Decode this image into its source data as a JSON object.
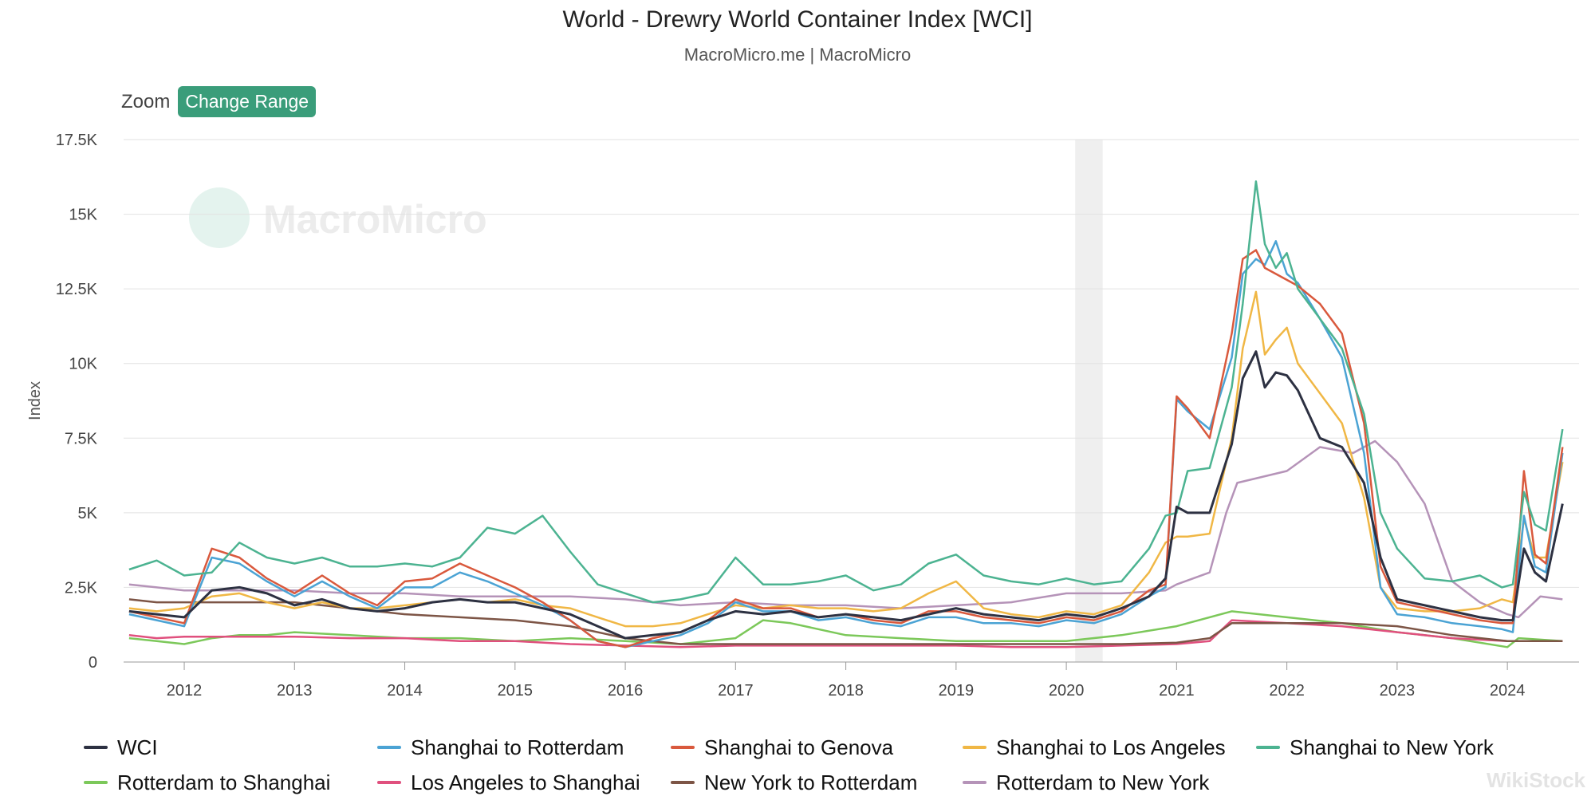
{
  "header": {
    "title": "World - Drewry World Container Index [WCI]",
    "subtitle": "MacroMicro.me | MacroMicro"
  },
  "toolbar": {
    "zoom_label": "Zoom",
    "change_range_label": "Change Range"
  },
  "watermark": {
    "text": "MacroMicro",
    "corner_text": "WikiStock"
  },
  "chart_data": {
    "type": "line",
    "ylabel": "Index",
    "xlabel": "",
    "ylim": [
      0,
      17500
    ],
    "yticks": [
      0,
      2500,
      5000,
      7500,
      10000,
      12500,
      15000,
      17500
    ],
    "ytick_labels": [
      "0",
      "2.5K",
      "5K",
      "7.5K",
      "10K",
      "12.5K",
      "15K",
      "17.5K"
    ],
    "xlim": [
      2011.45,
      2024.65
    ],
    "xticks": [
      2012,
      2013,
      2014,
      2015,
      2016,
      2017,
      2018,
      2019,
      2020,
      2021,
      2022,
      2023,
      2024
    ],
    "xtick_labels": [
      "2012",
      "2013",
      "2014",
      "2015",
      "2016",
      "2017",
      "2018",
      "2019",
      "2020",
      "2021",
      "2022",
      "2023",
      "2024"
    ],
    "grid": true,
    "legend": "bottom",
    "recession_band": [
      2020.08,
      2020.33
    ],
    "series": [
      {
        "name": "WCI",
        "color": "#2d3142",
        "x": [
          2011.5,
          2011.75,
          2012.0,
          2012.25,
          2012.5,
          2012.75,
          2013.0,
          2013.25,
          2013.5,
          2013.75,
          2014.0,
          2014.25,
          2014.5,
          2014.75,
          2015.0,
          2015.25,
          2015.5,
          2015.75,
          2016.0,
          2016.25,
          2016.5,
          2016.75,
          2017.0,
          2017.25,
          2017.5,
          2017.75,
          2018.0,
          2018.25,
          2018.5,
          2018.75,
          2019.0,
          2019.25,
          2019.5,
          2019.75,
          2020.0,
          2020.25,
          2020.5,
          2020.75,
          2020.9,
          2021.0,
          2021.1,
          2021.3,
          2021.5,
          2021.6,
          2021.72,
          2021.8,
          2021.9,
          2022.0,
          2022.1,
          2022.3,
          2022.5,
          2022.7,
          2022.85,
          2023.0,
          2023.25,
          2023.5,
          2023.75,
          2023.95,
          2024.05,
          2024.15,
          2024.25,
          2024.35,
          2024.5
        ],
        "y": [
          1700,
          1600,
          1500,
          2400,
          2500,
          2300,
          1900,
          2100,
          1800,
          1700,
          1800,
          2000,
          2100,
          2000,
          2000,
          1800,
          1600,
          1200,
          800,
          900,
          1000,
          1400,
          1700,
          1600,
          1700,
          1500,
          1600,
          1500,
          1400,
          1600,
          1800,
          1600,
          1500,
          1400,
          1600,
          1500,
          1800,
          2200,
          2800,
          5200,
          5000,
          5000,
          7300,
          9500,
          10400,
          9200,
          9700,
          9600,
          9100,
          7500,
          7200,
          6000,
          3500,
          2100,
          1900,
          1700,
          1500,
          1400,
          1400,
          3800,
          3000,
          2700,
          5300
        ]
      },
      {
        "name": "Shanghai to Rotterdam",
        "color": "#4ba3d4",
        "x": [
          2011.5,
          2011.75,
          2012.0,
          2012.25,
          2012.5,
          2012.75,
          2013.0,
          2013.25,
          2013.5,
          2013.75,
          2014.0,
          2014.25,
          2014.5,
          2014.75,
          2015.0,
          2015.25,
          2015.5,
          2015.75,
          2016.0,
          2016.25,
          2016.5,
          2016.75,
          2017.0,
          2017.25,
          2017.5,
          2017.75,
          2018.0,
          2018.25,
          2018.5,
          2018.75,
          2019.0,
          2019.25,
          2019.5,
          2019.75,
          2020.0,
          2020.25,
          2020.5,
          2020.75,
          2020.9,
          2021.0,
          2021.1,
          2021.3,
          2021.5,
          2021.6,
          2021.72,
          2021.8,
          2021.9,
          2022.0,
          2022.1,
          2022.3,
          2022.5,
          2022.7,
          2022.85,
          2023.0,
          2023.25,
          2023.5,
          2023.75,
          2023.95,
          2024.05,
          2024.15,
          2024.25,
          2024.35,
          2024.5
        ],
        "y": [
          1600,
          1400,
          1200,
          3500,
          3300,
          2700,
          2200,
          2700,
          2200,
          1800,
          2500,
          2500,
          3000,
          2700,
          2300,
          1900,
          1400,
          700,
          500,
          700,
          900,
          1300,
          2000,
          1700,
          1700,
          1400,
          1500,
          1300,
          1200,
          1500,
          1500,
          1300,
          1300,
          1200,
          1400,
          1300,
          1600,
          2200,
          2500,
          8800,
          8400,
          7800,
          10200,
          13000,
          13500,
          13300,
          14100,
          13000,
          12700,
          11500,
          10200,
          7000,
          2500,
          1600,
          1500,
          1300,
          1200,
          1100,
          1000,
          4900,
          3200,
          3000,
          7000
        ]
      },
      {
        "name": "Shanghai to Genova",
        "color": "#d9593d",
        "x": [
          2011.5,
          2011.75,
          2012.0,
          2012.25,
          2012.5,
          2012.75,
          2013.0,
          2013.25,
          2013.5,
          2013.75,
          2014.0,
          2014.25,
          2014.5,
          2014.75,
          2015.0,
          2015.25,
          2015.5,
          2015.75,
          2016.0,
          2016.25,
          2016.5,
          2016.75,
          2017.0,
          2017.25,
          2017.5,
          2017.75,
          2018.0,
          2018.25,
          2018.5,
          2018.75,
          2019.0,
          2019.25,
          2019.5,
          2019.75,
          2020.0,
          2020.25,
          2020.5,
          2020.75,
          2020.9,
          2021.0,
          2021.1,
          2021.3,
          2021.5,
          2021.6,
          2021.72,
          2021.8,
          2021.9,
          2022.0,
          2022.1,
          2022.3,
          2022.5,
          2022.7,
          2022.85,
          2023.0,
          2023.25,
          2023.5,
          2023.75,
          2023.95,
          2024.05,
          2024.15,
          2024.25,
          2024.35,
          2024.5
        ],
        "y": [
          1700,
          1500,
          1300,
          3800,
          3500,
          2800,
          2300,
          2900,
          2300,
          1900,
          2700,
          2800,
          3300,
          2900,
          2500,
          2000,
          1400,
          700,
          500,
          800,
          1000,
          1400,
          2100,
          1800,
          1800,
          1500,
          1600,
          1400,
          1300,
          1700,
          1700,
          1500,
          1400,
          1300,
          1500,
          1400,
          1700,
          2400,
          2600,
          8900,
          8500,
          7500,
          11000,
          13500,
          13800,
          13200,
          13000,
          12800,
          12600,
          12000,
          11000,
          8000,
          3200,
          2000,
          1800,
          1600,
          1400,
          1300,
          1300,
          6400,
          3600,
          3300,
          7200
        ]
      },
      {
        "name": "Shanghai to Los Angeles",
        "color": "#f0b745",
        "x": [
          2011.5,
          2011.75,
          2012.0,
          2012.25,
          2012.5,
          2012.75,
          2013.0,
          2013.25,
          2013.5,
          2013.75,
          2014.0,
          2014.25,
          2014.5,
          2014.75,
          2015.0,
          2015.25,
          2015.5,
          2015.75,
          2016.0,
          2016.25,
          2016.5,
          2016.75,
          2017.0,
          2017.25,
          2017.5,
          2017.75,
          2018.0,
          2018.25,
          2018.5,
          2018.75,
          2019.0,
          2019.25,
          2019.5,
          2019.75,
          2020.0,
          2020.25,
          2020.5,
          2020.75,
          2020.9,
          2021.0,
          2021.1,
          2021.3,
          2021.5,
          2021.6,
          2021.72,
          2021.8,
          2021.9,
          2022.0,
          2022.1,
          2022.3,
          2022.5,
          2022.7,
          2022.85,
          2023.0,
          2023.25,
          2023.5,
          2023.75,
          2023.95,
          2024.05,
          2024.15,
          2024.25,
          2024.35,
          2024.5
        ],
        "y": [
          1800,
          1700,
          1800,
          2200,
          2300,
          2000,
          1800,
          2000,
          1800,
          1800,
          1900,
          2000,
          2100,
          2000,
          2100,
          1900,
          1800,
          1500,
          1200,
          1200,
          1300,
          1600,
          1900,
          1800,
          1900,
          1800,
          1800,
          1700,
          1800,
          2300,
          2700,
          1800,
          1600,
          1500,
          1700,
          1600,
          1900,
          3000,
          4000,
          4200,
          4200,
          4300,
          7500,
          10500,
          12400,
          10300,
          10800,
          11200,
          10000,
          9000,
          8000,
          5500,
          2500,
          1800,
          1700,
          1700,
          1800,
          2100,
          2000,
          4800,
          3500,
          3500,
          6700
        ]
      },
      {
        "name": "Shanghai to New York",
        "color": "#4cb391",
        "x": [
          2011.5,
          2011.75,
          2012.0,
          2012.25,
          2012.5,
          2012.75,
          2013.0,
          2013.25,
          2013.5,
          2013.75,
          2014.0,
          2014.25,
          2014.5,
          2014.75,
          2015.0,
          2015.25,
          2015.5,
          2015.75,
          2016.0,
          2016.25,
          2016.5,
          2016.75,
          2017.0,
          2017.25,
          2017.5,
          2017.75,
          2018.0,
          2018.25,
          2018.5,
          2018.75,
          2019.0,
          2019.25,
          2019.5,
          2019.75,
          2020.0,
          2020.25,
          2020.5,
          2020.75,
          2020.9,
          2021.0,
          2021.1,
          2021.3,
          2021.5,
          2021.6,
          2021.72,
          2021.8,
          2021.9,
          2022.0,
          2022.1,
          2022.3,
          2022.5,
          2022.7,
          2022.85,
          2023.0,
          2023.25,
          2023.5,
          2023.75,
          2023.95,
          2024.05,
          2024.15,
          2024.25,
          2024.35,
          2024.5
        ],
        "y": [
          3100,
          3400,
          2900,
          3000,
          4000,
          3500,
          3300,
          3500,
          3200,
          3200,
          3300,
          3200,
          3500,
          4500,
          4300,
          4900,
          3700,
          2600,
          2300,
          2000,
          2100,
          2300,
          3500,
          2600,
          2600,
          2700,
          2900,
          2400,
          2600,
          3300,
          3600,
          2900,
          2700,
          2600,
          2800,
          2600,
          2700,
          3800,
          4900,
          5000,
          6400,
          6500,
          9200,
          12000,
          16100,
          14000,
          13200,
          13700,
          12500,
          11500,
          10500,
          8300,
          5000,
          3800,
          2800,
          2700,
          2900,
          2500,
          2600,
          5700,
          4600,
          4400,
          7800
        ]
      },
      {
        "name": "Rotterdam to Shanghai",
        "color": "#7cc85a",
        "x": [
          2011.5,
          2011.75,
          2012.0,
          2012.25,
          2012.5,
          2012.75,
          2013.0,
          2013.5,
          2014.0,
          2014.5,
          2015.0,
          2015.5,
          2016.0,
          2016.5,
          2017.0,
          2017.25,
          2017.5,
          2018.0,
          2018.5,
          2019.0,
          2019.5,
          2020.0,
          2020.5,
          2021.0,
          2021.5,
          2022.0,
          2022.5,
          2023.0,
          2023.5,
          2024.0,
          2024.1,
          2024.5
        ],
        "y": [
          800,
          700,
          600,
          800,
          900,
          900,
          1000,
          900,
          800,
          800,
          700,
          800,
          700,
          600,
          800,
          1400,
          1300,
          900,
          800,
          700,
          700,
          700,
          900,
          1200,
          1700,
          1500,
          1300,
          1000,
          800,
          500,
          800,
          700
        ]
      },
      {
        "name": "Los Angeles to Shanghai",
        "color": "#e0507e",
        "x": [
          2011.5,
          2011.75,
          2012.0,
          2012.5,
          2013.0,
          2013.5,
          2014.0,
          2014.5,
          2015.0,
          2015.5,
          2016.0,
          2016.5,
          2017.0,
          2017.5,
          2018.0,
          2018.5,
          2019.0,
          2019.5,
          2020.0,
          2020.5,
          2021.0,
          2021.3,
          2021.5,
          2022.0,
          2022.5,
          2023.0,
          2023.5,
          2024.0,
          2024.5
        ],
        "y": [
          900,
          800,
          850,
          850,
          850,
          800,
          800,
          700,
          700,
          600,
          550,
          500,
          550,
          550,
          550,
          550,
          550,
          500,
          500,
          550,
          600,
          700,
          1400,
          1300,
          1200,
          1000,
          800,
          700,
          700
        ]
      },
      {
        "name": "New York to Rotterdam",
        "color": "#7d5546",
        "x": [
          2011.5,
          2011.75,
          2012.0,
          2012.5,
          2013.0,
          2013.5,
          2014.0,
          2014.5,
          2015.0,
          2015.5,
          2016.0,
          2016.5,
          2017.0,
          2017.5,
          2018.0,
          2018.5,
          2019.0,
          2019.5,
          2020.0,
          2020.5,
          2021.0,
          2021.3,
          2021.5,
          2022.0,
          2022.5,
          2023.0,
          2023.5,
          2024.0,
          2024.5
        ],
        "y": [
          2100,
          2000,
          2000,
          2000,
          2000,
          1800,
          1600,
          1500,
          1400,
          1200,
          800,
          600,
          600,
          600,
          600,
          600,
          600,
          600,
          600,
          600,
          650,
          800,
          1300,
          1300,
          1300,
          1200,
          900,
          700,
          700
        ]
      },
      {
        "name": "Rotterdam to New York",
        "color": "#b593b8",
        "x": [
          2011.5,
          2011.75,
          2012.0,
          2012.5,
          2013.0,
          2013.5,
          2014.0,
          2014.5,
          2015.0,
          2015.5,
          2016.0,
          2016.5,
          2017.0,
          2017.5,
          2018.0,
          2018.5,
          2019.0,
          2019.5,
          2020.0,
          2020.5,
          2020.9,
          2021.0,
          2021.3,
          2021.45,
          2021.55,
          2022.0,
          2022.3,
          2022.6,
          2022.8,
          2023.0,
          2023.25,
          2023.5,
          2023.75,
          2024.0,
          2024.1,
          2024.3,
          2024.5
        ],
        "y": [
          2600,
          2500,
          2400,
          2400,
          2400,
          2300,
          2300,
          2200,
          2200,
          2200,
          2100,
          1900,
          2000,
          1900,
          1900,
          1800,
          1900,
          2000,
          2300,
          2300,
          2400,
          2600,
          3000,
          5000,
          6000,
          6400,
          7200,
          7000,
          7400,
          6700,
          5300,
          2700,
          2000,
          1600,
          1500,
          2200,
          2100
        ]
      }
    ]
  }
}
